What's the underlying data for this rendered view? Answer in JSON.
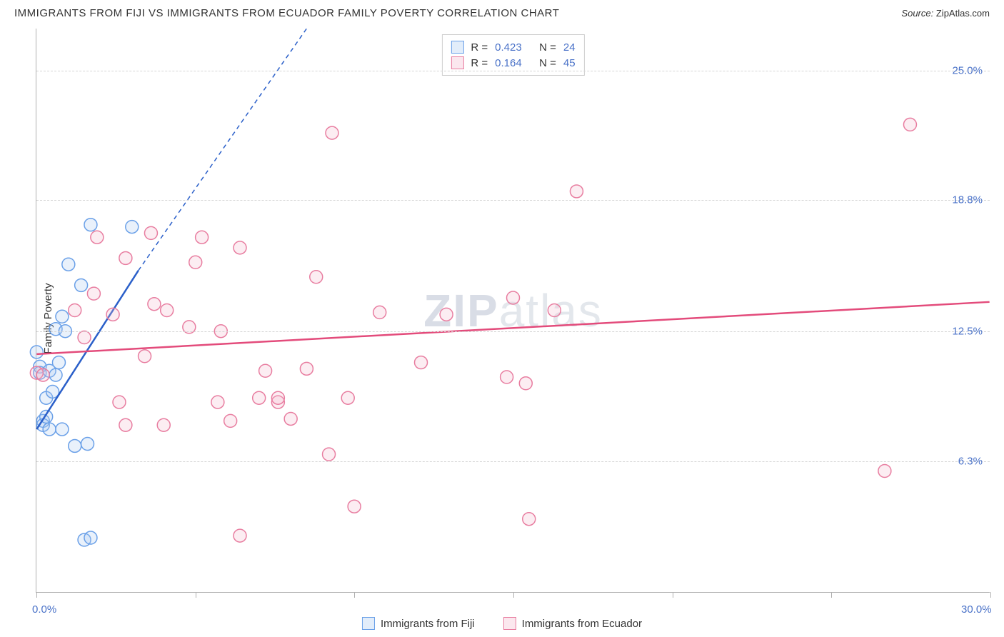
{
  "header": {
    "title": "IMMIGRANTS FROM FIJI VS IMMIGRANTS FROM ECUADOR FAMILY POVERTY CORRELATION CHART",
    "source_label": "Source:",
    "source_name": "ZipAtlas.com"
  },
  "chart": {
    "type": "scatter",
    "ylabel": "Family Poverty",
    "watermark": "ZIPatlas",
    "watermark_bold_prefix": "ZIP",
    "watermark_rest": "atlas",
    "xlim": [
      0,
      30
    ],
    "ylim": [
      0,
      27
    ],
    "xticks": [
      0,
      5,
      10,
      15,
      20,
      25,
      30
    ],
    "x_axis_labels": {
      "min": "0.0%",
      "max": "30.0%"
    },
    "ygrid": [
      {
        "value": 6.3,
        "label": "6.3%"
      },
      {
        "value": 12.5,
        "label": "12.5%"
      },
      {
        "value": 18.8,
        "label": "18.8%"
      },
      {
        "value": 25.0,
        "label": "25.0%"
      }
    ],
    "grid_color": "#d5d5d5",
    "axis_color": "#b0b0b0",
    "background_color": "#ffffff",
    "tick_label_color": "#4a72c8",
    "marker_radius": 9,
    "marker_stroke_width": 1.5,
    "marker_fill_opacity": 0.25,
    "series": [
      {
        "name": "Immigrants from Fiji",
        "legend_label": "Immigrants from Fiji",
        "stroke": "#6aa0e8",
        "fill": "#a8c8f0",
        "r_value": "0.423",
        "n_value": "24",
        "trend": {
          "x1": 0,
          "y1": 7.8,
          "x2": 3.2,
          "y2": 15.4,
          "dash_x2": 8.5,
          "dash_y2": 27.0,
          "color": "#2a5fc9",
          "width": 2.5
        },
        "points": [
          [
            0.0,
            11.5
          ],
          [
            0.1,
            10.8
          ],
          [
            0.1,
            10.5
          ],
          [
            0.2,
            8.2
          ],
          [
            0.2,
            8.0
          ],
          [
            0.3,
            8.4
          ],
          [
            0.3,
            9.3
          ],
          [
            0.5,
            9.6
          ],
          [
            0.4,
            10.6
          ],
          [
            0.6,
            10.4
          ],
          [
            0.7,
            11.0
          ],
          [
            0.6,
            12.6
          ],
          [
            0.9,
            12.5
          ],
          [
            0.8,
            13.2
          ],
          [
            1.4,
            14.7
          ],
          [
            1.0,
            15.7
          ],
          [
            1.7,
            17.6
          ],
          [
            3.0,
            17.5
          ],
          [
            0.4,
            7.8
          ],
          [
            0.8,
            7.8
          ],
          [
            1.2,
            7.0
          ],
          [
            1.6,
            7.1
          ],
          [
            1.5,
            2.5
          ],
          [
            1.7,
            2.6
          ]
        ]
      },
      {
        "name": "Immigrants from Ecuador",
        "legend_label": "Immigrants from Ecuador",
        "stroke": "#e87da0",
        "fill": "#f4b8cc",
        "r_value": "0.164",
        "n_value": "45",
        "trend": {
          "x1": 0,
          "y1": 11.4,
          "x2": 30,
          "y2": 13.9,
          "color": "#e34b7b",
          "width": 2.5
        },
        "points": [
          [
            0.0,
            10.5
          ],
          [
            0.2,
            10.4
          ],
          [
            1.2,
            13.5
          ],
          [
            1.5,
            12.2
          ],
          [
            1.8,
            14.3
          ],
          [
            1.9,
            17.0
          ],
          [
            2.4,
            13.3
          ],
          [
            2.8,
            16.0
          ],
          [
            2.6,
            9.1
          ],
          [
            2.8,
            8.0
          ],
          [
            3.4,
            11.3
          ],
          [
            3.7,
            13.8
          ],
          [
            3.6,
            17.2
          ],
          [
            4.1,
            13.5
          ],
          [
            4.0,
            8.0
          ],
          [
            4.8,
            12.7
          ],
          [
            5.0,
            15.8
          ],
          [
            5.2,
            17.0
          ],
          [
            5.7,
            9.1
          ],
          [
            5.8,
            12.5
          ],
          [
            6.1,
            8.2
          ],
          [
            6.4,
            16.5
          ],
          [
            6.4,
            2.7
          ],
          [
            7.0,
            9.3
          ],
          [
            7.2,
            10.6
          ],
          [
            7.6,
            9.1
          ],
          [
            7.6,
            9.3
          ],
          [
            8.0,
            8.3
          ],
          [
            8.5,
            10.7
          ],
          [
            8.8,
            15.1
          ],
          [
            9.2,
            6.6
          ],
          [
            9.3,
            22.0
          ],
          [
            9.8,
            9.3
          ],
          [
            10.0,
            4.1
          ],
          [
            10.8,
            13.4
          ],
          [
            12.1,
            11.0
          ],
          [
            12.9,
            13.3
          ],
          [
            14.8,
            10.3
          ],
          [
            15.0,
            14.1
          ],
          [
            15.4,
            10.0
          ],
          [
            16.3,
            13.5
          ],
          [
            17.0,
            19.2
          ],
          [
            26.7,
            5.8
          ],
          [
            27.5,
            22.4
          ],
          [
            15.5,
            3.5
          ]
        ]
      }
    ]
  },
  "legend_corr": {
    "r_label": "R =",
    "n_label": "N ="
  }
}
